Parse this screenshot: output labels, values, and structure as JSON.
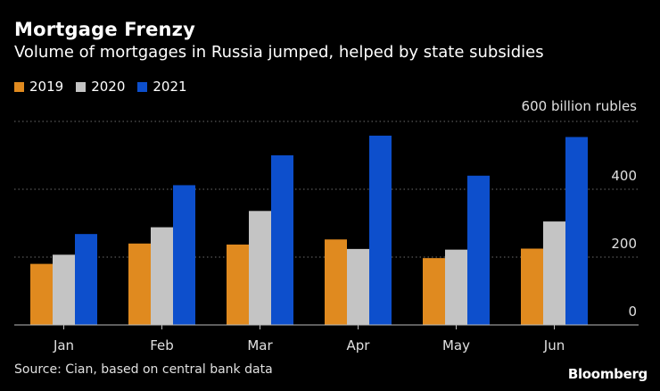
{
  "header": {
    "title": "Mortgage Frenzy",
    "subtitle": "Volume of mortgages in Russia jumped, helped by state subsidies"
  },
  "unit_label": "600 billion rubles",
  "source": "Source: Cian, based on central bank data",
  "brand": "Bloomberg",
  "colors": {
    "s2019": "#e08a1f",
    "s2020": "#c4c4c4",
    "s2021": "#0d4fcc"
  },
  "chart_data": {
    "type": "bar",
    "title": "Mortgage Frenzy",
    "subtitle": "Volume of mortgages in Russia jumped, helped by state subsidies",
    "categories": [
      "Jan",
      "Feb",
      "Mar",
      "Apr",
      "May",
      "Jun"
    ],
    "series": [
      {
        "name": "2019",
        "values": [
          180,
          240,
          237,
          252,
          197,
          225
        ]
      },
      {
        "name": "2020",
        "values": [
          207,
          288,
          336,
          224,
          222,
          305
        ]
      },
      {
        "name": "2021",
        "values": [
          268,
          412,
          500,
          558,
          440,
          554
        ]
      }
    ],
    "ylim": [
      0,
      600
    ],
    "yticks": [
      0,
      200,
      400
    ],
    "ytick_labels": [
      "0",
      "200",
      "400"
    ],
    "ylabel": "600 billion rubles",
    "xlabel": "",
    "grid": true,
    "legend": "top-left"
  }
}
